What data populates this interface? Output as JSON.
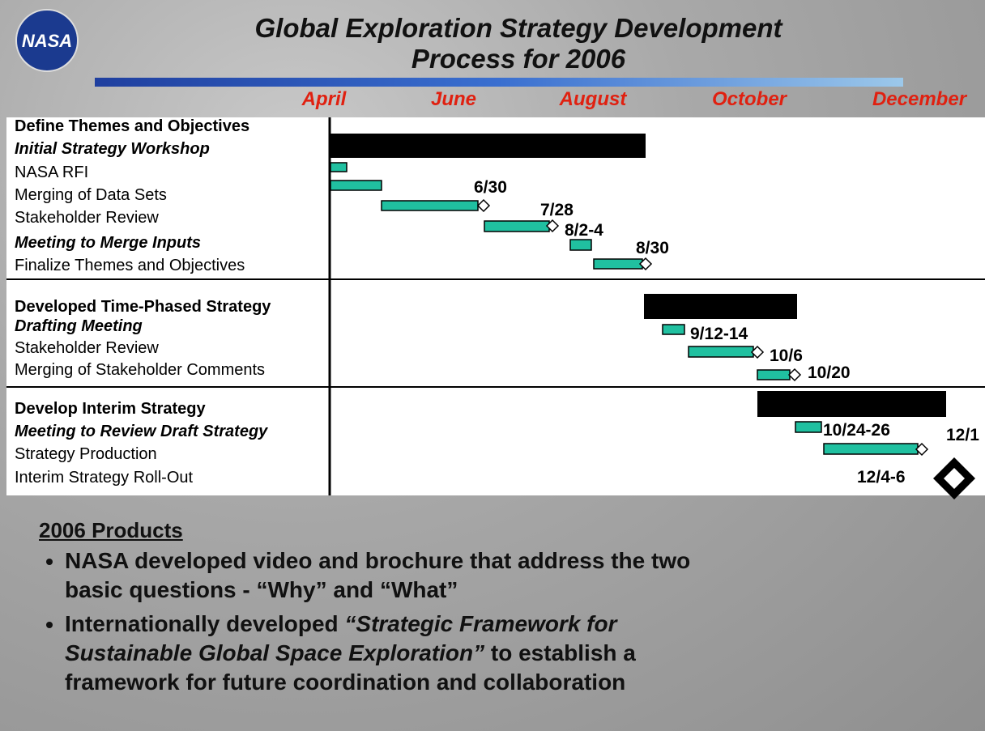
{
  "header": {
    "logo": "NASA",
    "title_line1": "Global Exploration Strategy Development",
    "title_line2": "Process for 2006",
    "months": [
      "April",
      "June",
      "August",
      "October",
      "December"
    ]
  },
  "sections": [
    {
      "title": "Define Themes and Objectives",
      "items": [
        "Initial Strategy Workshop",
        "NASA RFI",
        "Merging of Data Sets",
        "Stakeholder Review",
        "Meeting to Merge Inputs",
        "Finalize Themes and Objectives"
      ]
    },
    {
      "title": "Developed Time-Phased Strategy",
      "items": [
        "Drafting Meeting",
        "Stakeholder Review",
        "Merging of Stakeholder Comments"
      ]
    },
    {
      "title": "Develop Interim Strategy",
      "items": [
        "Meeting to Review Draft Strategy",
        "Strategy Production",
        "Interim Strategy Roll-Out"
      ]
    }
  ],
  "milestones": [
    "6/30",
    "7/28",
    "8/2-4",
    "8/30",
    "9/12-14",
    "10/6",
    "10/20",
    "10/24-26",
    "12/1",
    "12/4-6"
  ],
  "products": {
    "title": "2006 Products",
    "bullets": [
      {
        "text": "NASA developed video and brochure that address the two basic questions - “Why” and “What”"
      },
      {
        "before": "Internationally developed ",
        "italic": "“Strategic Framework for Sustainable Global Space Exploration”",
        "after": " to establish a framework for future coordination and collaboration"
      }
    ]
  }
}
